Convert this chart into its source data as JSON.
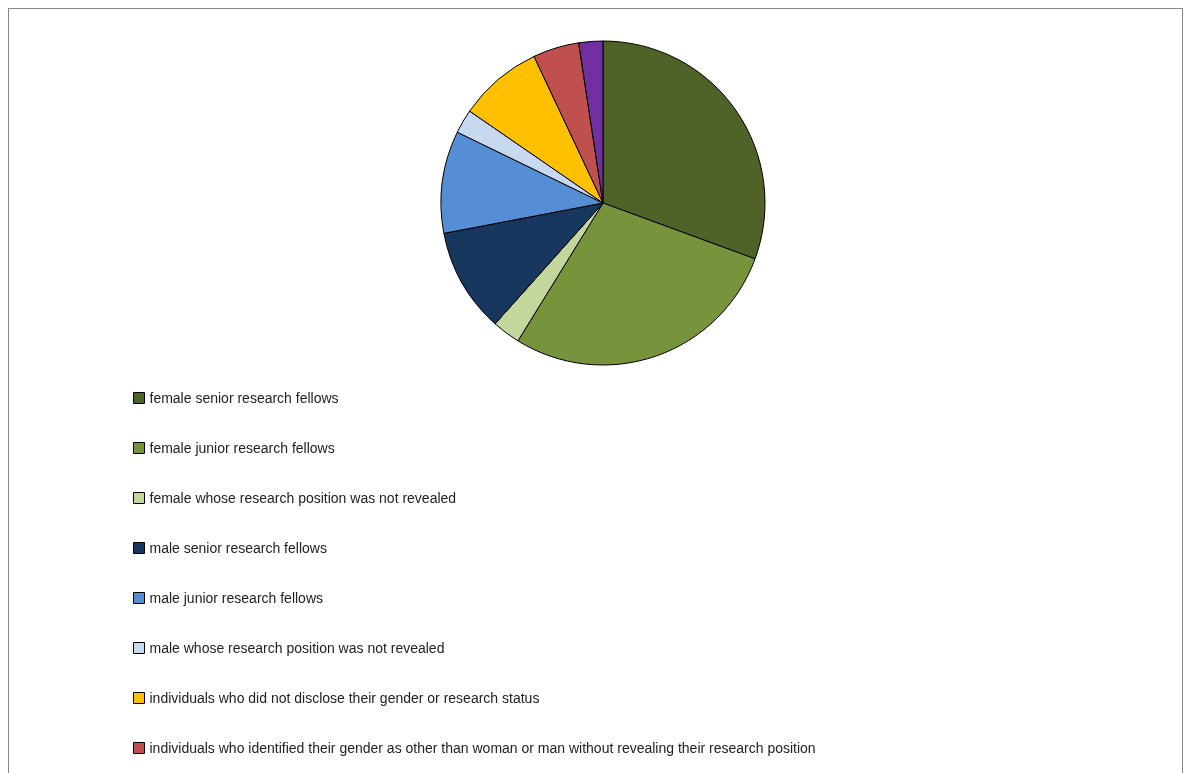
{
  "chart_data": {
    "type": "pie",
    "categories": [
      "female senior research fellows",
      "female junior research fellows",
      "female whose research position was not revealed",
      "male senior research fellows",
      "male junior research fellows",
      "male whose research position was not revealed",
      "individuals who did not disclose their gender or research status",
      "individuals who identified their gender as other than woman or man without revealing their research position",
      null
    ],
    "values": [
      30.6,
      28.2,
      2.8,
      10.4,
      10.2,
      2.4,
      8.4,
      4.6,
      2.4
    ],
    "colors": [
      "#4f6228",
      "#77933c",
      "#c3d69b",
      "#17375e",
      "#558ed5",
      "#c6d9f1",
      "#ffc000",
      "#c0504d",
      "#7030a0"
    ],
    "legend": "bottom left"
  }
}
